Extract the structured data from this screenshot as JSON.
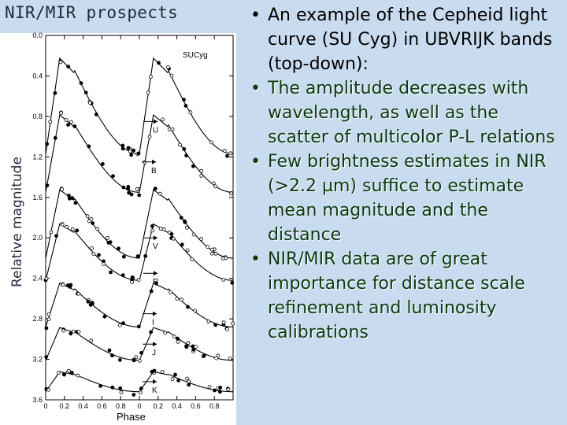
{
  "slide": {
    "title": "NIR/MIR prospects",
    "bullets": [
      {
        "text": "An example of the Cepheid light curve (SU Cyg) in UBVRIJK bands (top-down):",
        "color": "#000000"
      },
      {
        "text": "The amplitude decreases with wavelength, as well as the scatter of multicolor P-L relations",
        "color": "#0a3a10"
      },
      {
        "text": "Few brightness estimates in NIR (>2.2 µm) suffice to estimate mean magnitude and the distance",
        "color": "#0a3a10"
      },
      {
        "text": "NIR/MIR data are of great importance for distance scale refinement and luminosity calibrations",
        "color": "#0a3a10"
      }
    ],
    "colors": {
      "background": "#c9dcef",
      "text": "#0a3a10"
    }
  },
  "chart_data": {
    "type": "scatter",
    "title": "SUCyg",
    "xlabel": "Phase",
    "ylabel": "Relative magnitude",
    "x_ticks": [
      "0",
      "0.2",
      "0.4",
      "0.6",
      "0.8",
      "0",
      "0.2",
      "0.4",
      "0.6",
      "0.8"
    ],
    "y_ticks": [
      "0.0",
      "0.4",
      "0.8",
      "1.2",
      "1.6",
      "2.0",
      "2.4",
      "2.8",
      "3.2",
      "3.6"
    ],
    "xlim": [
      0,
      2
    ],
    "ylim": [
      0.0,
      3.6
    ],
    "series": [
      {
        "name": "U",
        "offset": 0.12,
        "amplitude": 1.05
      },
      {
        "name": "B",
        "offset": 0.7,
        "amplitude": 0.85
      },
      {
        "name": "V",
        "offset": 1.45,
        "amplitude": 0.75
      },
      {
        "name": "R",
        "offset": 1.8,
        "amplitude": 0.62
      },
      {
        "name": "I",
        "offset": 2.4,
        "amplitude": 0.48
      },
      {
        "name": "J",
        "offset": 2.85,
        "amplitude": 0.36
      },
      {
        "name": "K",
        "offset": 3.3,
        "amplitude": 0.22
      }
    ],
    "grid": false,
    "legend": "none"
  }
}
